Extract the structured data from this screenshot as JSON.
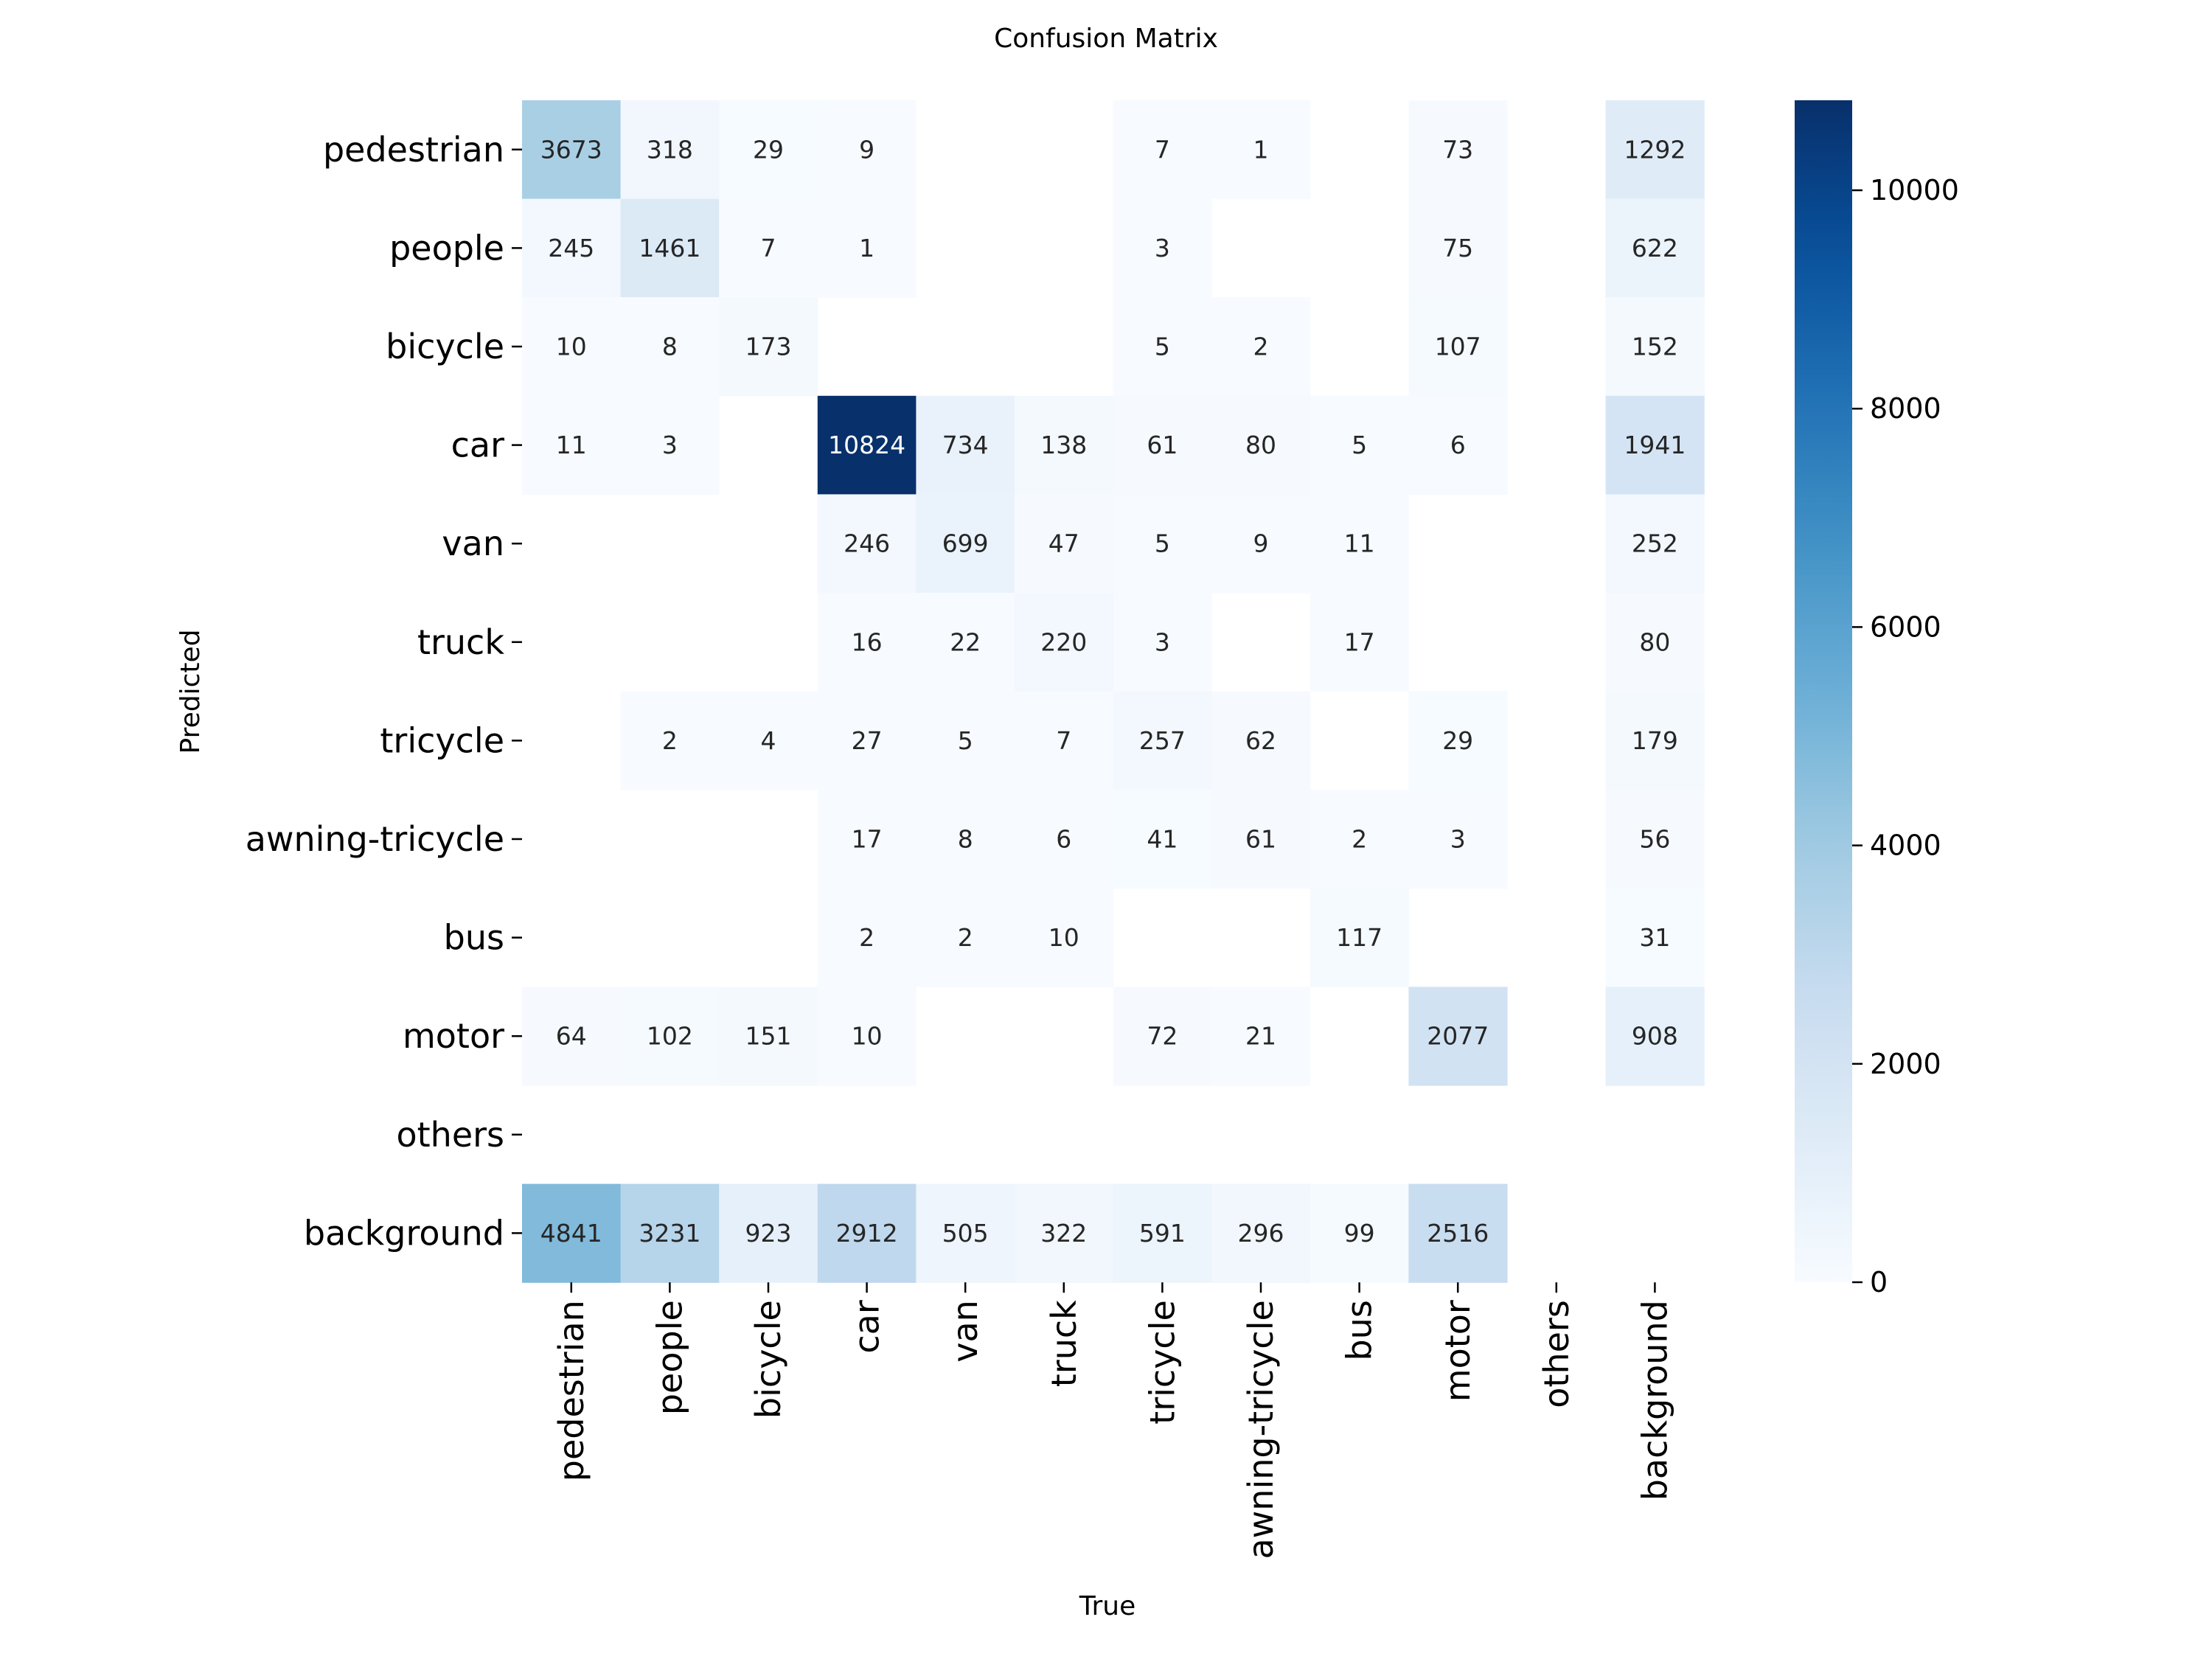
{
  "chart_data": {
    "type": "heatmap",
    "title": "Confusion Matrix",
    "xlabel": "True",
    "ylabel": "Predicted",
    "classes": [
      "pedestrian",
      "people",
      "bicycle",
      "car",
      "van",
      "truck",
      "tricycle",
      "awning-tricycle",
      "bus",
      "motor",
      "others",
      "background"
    ],
    "matrix": [
      [
        3673,
        318,
        29,
        9,
        null,
        null,
        7,
        1,
        null,
        73,
        null,
        1292
      ],
      [
        245,
        1461,
        7,
        1,
        null,
        null,
        3,
        null,
        null,
        75,
        null,
        622
      ],
      [
        10,
        8,
        173,
        null,
        null,
        null,
        5,
        2,
        null,
        107,
        null,
        152
      ],
      [
        11,
        3,
        null,
        10824,
        734,
        138,
        61,
        80,
        5,
        6,
        null,
        1941
      ],
      [
        null,
        null,
        null,
        246,
        699,
        47,
        5,
        9,
        11,
        null,
        null,
        252
      ],
      [
        null,
        null,
        null,
        16,
        22,
        220,
        3,
        null,
        17,
        null,
        null,
        80
      ],
      [
        null,
        2,
        4,
        27,
        5,
        7,
        257,
        62,
        null,
        29,
        null,
        179
      ],
      [
        null,
        null,
        null,
        17,
        8,
        6,
        41,
        61,
        2,
        3,
        null,
        56
      ],
      [
        null,
        null,
        null,
        2,
        2,
        10,
        null,
        null,
        117,
        null,
        null,
        31
      ],
      [
        64,
        102,
        151,
        10,
        null,
        null,
        72,
        21,
        null,
        2077,
        null,
        908
      ],
      [
        null,
        null,
        null,
        null,
        null,
        null,
        null,
        null,
        null,
        null,
        null,
        null
      ],
      [
        4841,
        3231,
        923,
        2912,
        505,
        322,
        591,
        296,
        99,
        2516,
        null,
        null
      ]
    ],
    "colormap": "Blues",
    "vmin": 0,
    "vmax": 10824,
    "colorbar_ticks": [
      0,
      2000,
      4000,
      6000,
      8000,
      10000
    ]
  }
}
